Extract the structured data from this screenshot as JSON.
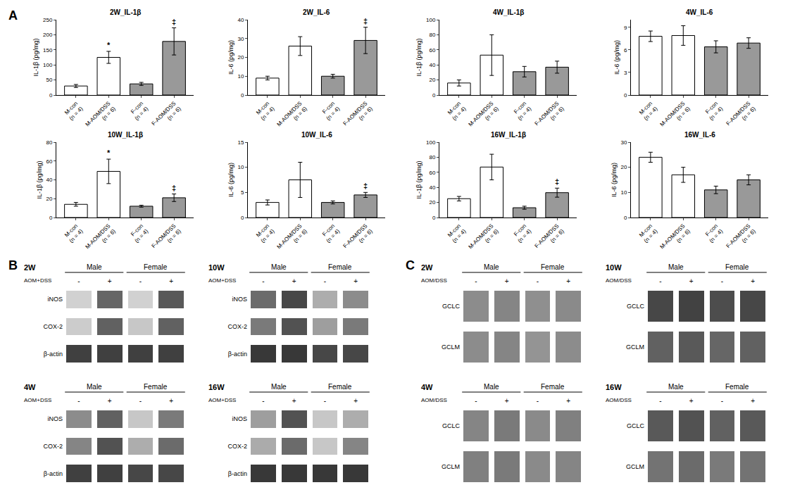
{
  "chart_data": [
    {
      "type": "bar",
      "panel": "A",
      "title": "2W_IL-1β",
      "ylabel": "IL-1β (pg/mg)",
      "categories": [
        "M-con\n(n = 4)",
        "M-AOM/DSS\n(n = 6)",
        "F-con\n(n = 4)",
        "F-AOM/DSS\n(n = 6)"
      ],
      "values": [
        30,
        125,
        37,
        178
      ],
      "errors": [
        5,
        20,
        5,
        45
      ],
      "colors": [
        "white",
        "white",
        "#999999",
        "#999999"
      ],
      "annotations": [
        null,
        "*",
        null,
        "‡"
      ],
      "ylim": [
        0,
        250
      ],
      "yticks": [
        0,
        50,
        100,
        150,
        200,
        250
      ],
      "grid": false
    },
    {
      "type": "bar",
      "panel": "A",
      "title": "2W_IL-6",
      "ylabel": "IL-6 (pg/mg)",
      "categories": [
        "M-con\n(n = 4)",
        "M-AOM/DSS\n(n = 6)",
        "F-con\n(n = 4)",
        "F-AOM/DSS\n(n = 6)"
      ],
      "values": [
        9,
        26,
        10,
        29
      ],
      "errors": [
        1,
        5,
        1,
        7
      ],
      "colors": [
        "white",
        "white",
        "#999999",
        "#999999"
      ],
      "annotations": [
        null,
        null,
        null,
        "‡"
      ],
      "ylim": [
        0,
        40
      ],
      "yticks": [
        0,
        10,
        20,
        30,
        40
      ],
      "grid": false
    },
    {
      "type": "bar",
      "panel": "A",
      "title": "4W_IL-1β",
      "ylabel": "IL-1β (pg/mg)",
      "categories": [
        "M-con\n(n = 4)",
        "M-AOM/DSS\n(n = 6)",
        "F-con\n(n = 4)",
        "F-AOM/DSS\n(n = 6)"
      ],
      "values": [
        16,
        53,
        31,
        37
      ],
      "errors": [
        4,
        27,
        7,
        8
      ],
      "colors": [
        "white",
        "white",
        "#999999",
        "#999999"
      ],
      "annotations": [
        null,
        null,
        null,
        null
      ],
      "ylim": [
        0,
        100
      ],
      "yticks": [
        0,
        20,
        40,
        60,
        80,
        100
      ],
      "grid": false
    },
    {
      "type": "bar",
      "panel": "A",
      "title": "4W_IL-6",
      "ylabel": "IL-6 (pg/mg)",
      "categories": [
        "M-con\n(n = 4)",
        "M-AOM/DSS\n(n = 6)",
        "F-con\n(n = 4)",
        "F-AOM/DSS\n(n = 6)"
      ],
      "values": [
        7.8,
        7.9,
        6.4,
        6.9
      ],
      "errors": [
        0.7,
        1.3,
        0.8,
        0.7
      ],
      "colors": [
        "white",
        "white",
        "#999999",
        "#999999"
      ],
      "annotations": [
        null,
        null,
        null,
        null
      ],
      "ylim": [
        0,
        10
      ],
      "yticks": [
        0,
        3,
        6,
        9
      ],
      "grid": false
    },
    {
      "type": "bar",
      "panel": "A",
      "title": "10W_IL-1β",
      "ylabel": "IL-1β (pg/mg)",
      "categories": [
        "M-con\n(n = 4)",
        "M-AOM/DSS\n(n = 6)",
        "F-con\n(n = 4)",
        "F-AOM/DSS\n(n = 6)"
      ],
      "values": [
        14,
        49,
        12,
        21
      ],
      "errors": [
        2,
        13,
        1,
        4
      ],
      "colors": [
        "white",
        "white",
        "#999999",
        "#999999"
      ],
      "annotations": [
        null,
        "*",
        null,
        "‡"
      ],
      "ylim": [
        0,
        80
      ],
      "yticks": [
        0,
        20,
        40,
        60,
        80
      ],
      "grid": false
    },
    {
      "type": "bar",
      "panel": "A",
      "title": "10W_IL-6",
      "ylabel": "IL-6 (pg/mg)",
      "categories": [
        "M-con\n(n = 4)",
        "M-AOM/DSS\n(n = 6)",
        "F-con\n(n = 4)",
        "F-AOM/DSS\n(n = 6)"
      ],
      "values": [
        3,
        7.5,
        3,
        4.5
      ],
      "errors": [
        0.5,
        3.5,
        0.3,
        0.5
      ],
      "colors": [
        "white",
        "white",
        "#999999",
        "#999999"
      ],
      "annotations": [
        null,
        null,
        null,
        "‡"
      ],
      "ylim": [
        0,
        15
      ],
      "yticks": [
        0,
        5,
        10,
        15
      ],
      "grid": false
    },
    {
      "type": "bar",
      "panel": "A",
      "title": "16W_IL-1β",
      "ylabel": "IL-1β (pg/mg)",
      "categories": [
        "M-con\n(n = 4)",
        "M-AOM/DSS\n(n = 6)",
        "F-con\n(n = 4)",
        "F-AOM/DSS\n(n = 6)"
      ],
      "values": [
        25,
        67,
        13,
        33
      ],
      "errors": [
        3,
        17,
        2,
        6
      ],
      "colors": [
        "white",
        "white",
        "#999999",
        "#999999"
      ],
      "annotations": [
        null,
        null,
        null,
        "‡"
      ],
      "ylim": [
        0,
        100
      ],
      "yticks": [
        0,
        20,
        40,
        60,
        80,
        100
      ],
      "grid": false
    },
    {
      "type": "bar",
      "panel": "A",
      "title": "16W_IL-6",
      "ylabel": "IL-6 (pg/mg)",
      "categories": [
        "M-con\n(n = 4)",
        "M-AOM/DSS\n(n = 6)",
        "F-con\n(n = 4)",
        "F-AOM/DSS\n(n = 6)"
      ],
      "values": [
        24,
        17,
        11,
        15
      ],
      "errors": [
        2,
        3,
        1.5,
        2
      ],
      "colors": [
        "white",
        "white",
        "#999999",
        "#999999"
      ],
      "annotations": [
        null,
        null,
        null,
        null
      ],
      "ylim": [
        0,
        30
      ],
      "yticks": [
        0,
        10,
        20,
        30
      ],
      "grid": false
    },
    {
      "type": "heatmap",
      "panel": "B",
      "title": "2W",
      "groups": [
        "Male",
        "Female"
      ],
      "row_label": "AOM+DSS",
      "categories": [
        "-",
        "+",
        "-",
        "+"
      ],
      "rows": [
        "iNOS",
        "COX-2",
        "β-actin"
      ],
      "cells": [
        [
          0.82,
          0.4,
          0.82,
          0.35
        ],
        [
          0.8,
          0.38,
          0.78,
          0.38
        ],
        [
          0.25,
          0.25,
          0.25,
          0.25
        ]
      ],
      "zlim": [
        0,
        1
      ]
    },
    {
      "type": "heatmap",
      "panel": "B",
      "title": "10W",
      "groups": [
        "Male",
        "Female"
      ],
      "row_label": "AOM+DSS",
      "categories": [
        "-",
        "+",
        "-",
        "+"
      ],
      "rows": [
        "iNOS",
        "COX-2",
        "β-actin"
      ],
      "cells": [
        [
          0.42,
          0.28,
          0.68,
          0.55
        ],
        [
          0.48,
          0.32,
          0.62,
          0.48
        ],
        [
          0.22,
          0.22,
          0.28,
          0.28
        ]
      ],
      "zlim": [
        0,
        1
      ]
    },
    {
      "type": "heatmap",
      "panel": "B",
      "title": "4W",
      "groups": [
        "Male",
        "Female"
      ],
      "row_label": "AOM+DSS",
      "categories": [
        "-",
        "+",
        "-",
        "+"
      ],
      "rows": [
        "iNOS",
        "COX-2",
        "β-actin"
      ],
      "cells": [
        [
          0.55,
          0.38,
          0.78,
          0.48
        ],
        [
          0.52,
          0.32,
          0.68,
          0.42
        ],
        [
          0.25,
          0.25,
          0.28,
          0.28
        ]
      ],
      "zlim": [
        0,
        1
      ]
    },
    {
      "type": "heatmap",
      "panel": "B",
      "title": "16W",
      "groups": [
        "Male",
        "Female"
      ],
      "row_label": "AOM+DSS",
      "categories": [
        "-",
        "+",
        "-",
        "+"
      ],
      "rows": [
        "iNOS",
        "COX-2",
        "β-actin"
      ],
      "cells": [
        [
          0.62,
          0.32,
          0.78,
          0.68
        ],
        [
          0.67,
          0.42,
          0.78,
          0.52
        ],
        [
          0.22,
          0.22,
          0.22,
          0.22
        ]
      ],
      "zlim": [
        0,
        1
      ]
    },
    {
      "type": "heatmap",
      "panel": "C",
      "title": "2W",
      "groups": [
        "Male",
        "Female"
      ],
      "row_label": "AOM/DSS",
      "categories": [
        "-",
        "+",
        "-",
        "+"
      ],
      "rows": [
        "GCLC",
        "GCLM"
      ],
      "cells": [
        [
          0.55,
          0.52,
          0.56,
          0.54
        ],
        [
          0.55,
          0.52,
          0.58,
          0.55
        ]
      ],
      "zlim": [
        0,
        1
      ]
    },
    {
      "type": "heatmap",
      "panel": "C",
      "title": "10W",
      "groups": [
        "Male",
        "Female"
      ],
      "row_label": "AOM/DSS",
      "categories": [
        "-",
        "+",
        "-",
        "+"
      ],
      "rows": [
        "GCLC",
        "GCLM"
      ],
      "cells": [
        [
          0.28,
          0.26,
          0.3,
          0.28
        ],
        [
          0.38,
          0.35,
          0.4,
          0.38
        ]
      ],
      "zlim": [
        0,
        1
      ]
    },
    {
      "type": "heatmap",
      "panel": "C",
      "title": "4W",
      "groups": [
        "Male",
        "Female"
      ],
      "row_label": "AOM/DSS",
      "categories": [
        "-",
        "+",
        "-",
        "+"
      ],
      "rows": [
        "GCLC",
        "GCLM"
      ],
      "cells": [
        [
          0.52,
          0.48,
          0.54,
          0.5
        ],
        [
          0.5,
          0.48,
          0.54,
          0.52
        ]
      ],
      "zlim": [
        0,
        1
      ]
    },
    {
      "type": "heatmap",
      "panel": "C",
      "title": "16W",
      "groups": [
        "Male",
        "Female"
      ],
      "row_label": "AOM/DSS",
      "categories": [
        "-",
        "+",
        "-",
        "+"
      ],
      "rows": [
        "GCLC",
        "GCLM"
      ],
      "cells": [
        [
          0.35,
          0.32,
          0.38,
          0.35
        ],
        [
          0.45,
          0.42,
          0.48,
          0.45
        ]
      ],
      "zlim": [
        0,
        1
      ]
    }
  ]
}
